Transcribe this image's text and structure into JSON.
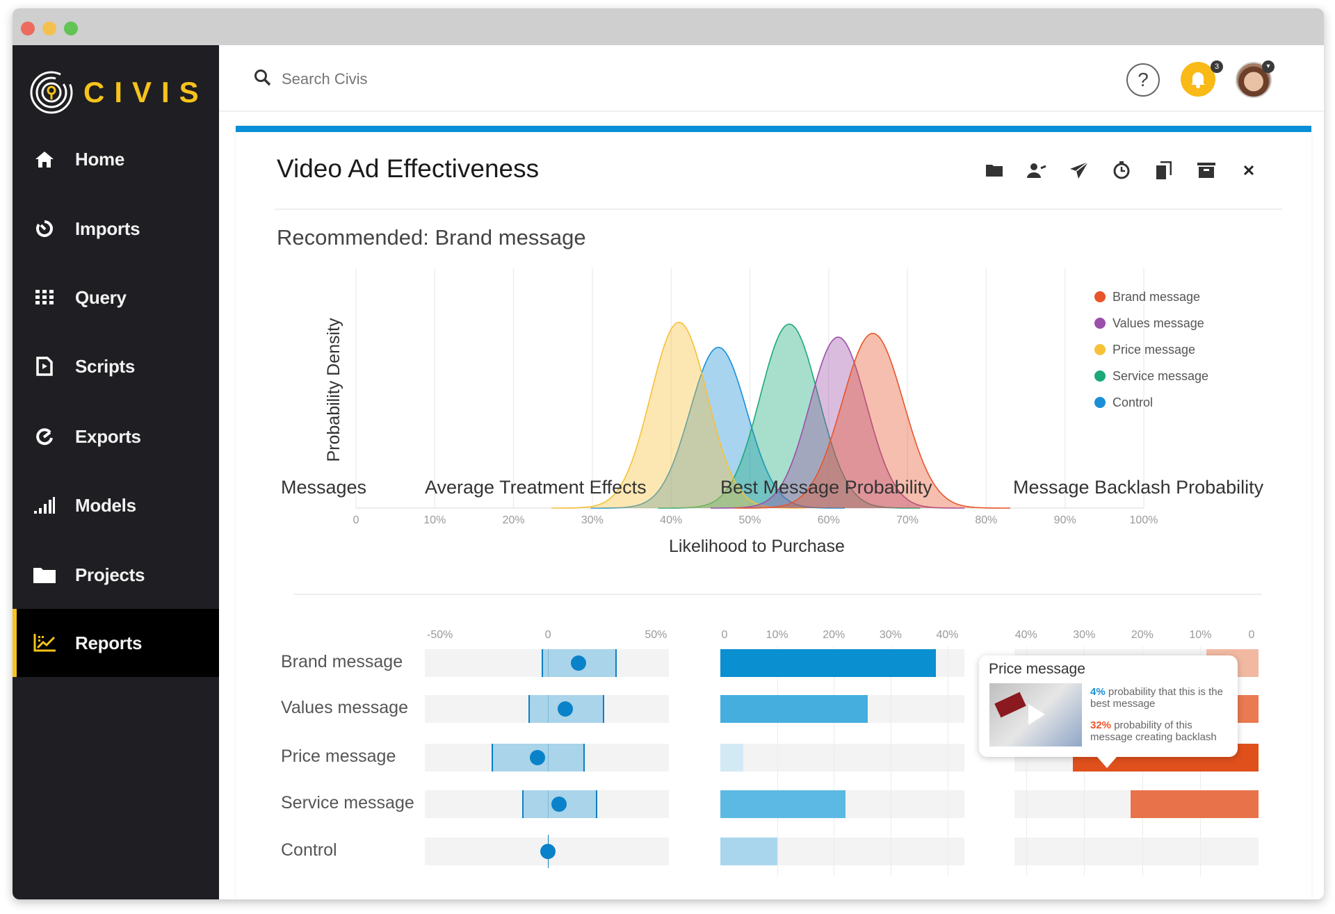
{
  "window_controls": {
    "close_color": "#ec6a5e",
    "minimize_color": "#f4c04f",
    "zoom_color": "#61c454"
  },
  "brand": {
    "name": "CIVIS",
    "accent": "#f5c31b"
  },
  "sidebar": {
    "items": [
      {
        "label": "Home",
        "icon": "home-icon"
      },
      {
        "label": "Imports",
        "icon": "imports-icon"
      },
      {
        "label": "Query",
        "icon": "grid-icon"
      },
      {
        "label": "Scripts",
        "icon": "script-file-icon"
      },
      {
        "label": "Exports",
        "icon": "exports-icon"
      },
      {
        "label": "Models",
        "icon": "signal-bars-icon"
      },
      {
        "label": "Projects",
        "icon": "folder-icon"
      },
      {
        "label": "Reports",
        "icon": "chart-icon",
        "active": true
      }
    ]
  },
  "topbar": {
    "search_placeholder": "Search Civis",
    "help_label": "?",
    "notification_count": "3"
  },
  "report": {
    "title": "Video Ad Effectiveness",
    "toolbar_icons": [
      "folder-icon",
      "share-user-icon",
      "send-icon",
      "schedule-icon",
      "copy-icon",
      "archive-icon",
      "close-icon"
    ],
    "recommended": "Recommended: Brand message"
  },
  "chart_data": [
    {
      "type": "area",
      "title": "",
      "xlabel": "Likelihood to Purchase",
      "ylabel": "Probability Density",
      "xlim": [
        0,
        100
      ],
      "ylim": [
        0,
        1.29
      ],
      "x_ticks": [
        "0",
        "10%",
        "20%",
        "30%",
        "40%",
        "50%",
        "60%",
        "70%",
        "80%",
        "90%",
        "100%"
      ],
      "grid": "vertical",
      "legend_position": "top-right",
      "series": [
        {
          "name": "Brand message",
          "color": "#e8552b",
          "mean": 65.6,
          "sd": 3.9,
          "peak": 0.94
        },
        {
          "name": "Values message",
          "color": "#9b4fa8",
          "mean": 61.2,
          "sd": 3.6,
          "peak": 0.92
        },
        {
          "name": "Price message",
          "color": "#f7c137",
          "mean": 41.0,
          "sd": 3.6,
          "peak": 1.0
        },
        {
          "name": "Service message",
          "color": "#1aa97a",
          "mean": 55.0,
          "sd": 3.7,
          "peak": 0.99
        },
        {
          "name": "Control",
          "color": "#1a8fd6",
          "mean": 46.0,
          "sd": 3.6,
          "peak": 0.865
        }
      ]
    },
    {
      "type": "table",
      "headers": {
        "messages": "Messages",
        "ate": "Average Treatment Effects",
        "best": "Best Message Probability",
        "backlash": "Message Backlash Probability"
      },
      "ate_axis": {
        "domain": [
          -57,
          56
        ],
        "ticks": [
          {
            "v": -50,
            "label": "-50%"
          },
          {
            "v": 0,
            "label": "0"
          },
          {
            "v": 50,
            "label": "50%"
          }
        ]
      },
      "best_axis": {
        "domain": [
          0,
          43
        ],
        "ticks": [
          {
            "v": 0,
            "label": "0"
          },
          {
            "v": 10,
            "label": "10%"
          },
          {
            "v": 20,
            "label": "20%"
          },
          {
            "v": 30,
            "label": "30%"
          },
          {
            "v": 40,
            "label": "40%"
          }
        ]
      },
      "backlash_axis": {
        "domain": [
          0,
          42
        ],
        "reversed": true,
        "ticks": [
          {
            "v": 40,
            "label": "40%"
          },
          {
            "v": 30,
            "label": "30%"
          },
          {
            "v": 20,
            "label": "20%"
          },
          {
            "v": 10,
            "label": "10%"
          },
          {
            "v": 0,
            "label": "0"
          }
        ]
      },
      "rows": [
        {
          "label": "Brand message",
          "ate": 14,
          "ate_lo": -3,
          "ate_hi": 32,
          "best": 38,
          "best_color": "#0a8fd1",
          "backlash": 9,
          "backlash_color": "#f1b9a2"
        },
        {
          "label": "Values message",
          "ate": 8,
          "ate_lo": -9,
          "ate_hi": 26,
          "best": 26,
          "best_color": "#45aedf",
          "backlash": 15,
          "backlash_color": "#e97a52"
        },
        {
          "label": "Price message",
          "ate": -5,
          "ate_lo": -26,
          "ate_hi": 17,
          "best": 4,
          "best_color": "#d3eaf5",
          "backlash": 32,
          "backlash_color": "#e0501c"
        },
        {
          "label": "Service message",
          "ate": 5,
          "ate_lo": -12,
          "ate_hi": 23,
          "best": 22,
          "best_color": "#5cb9e3",
          "backlash": 22,
          "backlash_color": "#e8724a"
        },
        {
          "label": "Control",
          "ate": 0,
          "ate_lo": 0,
          "ate_hi": 0,
          "best": 10,
          "best_color": "#a9d6ed",
          "backlash": 0,
          "backlash_color": "#e8724a"
        }
      ]
    }
  ],
  "tooltip": {
    "title": "Price message",
    "best_value": "4%",
    "best_text": "probability that this is the best message",
    "best_color": "#1a8fd6",
    "backlash_value": "32%",
    "backlash_text": "probability of this message creating backlash",
    "backlash_color": "#e8552b"
  }
}
